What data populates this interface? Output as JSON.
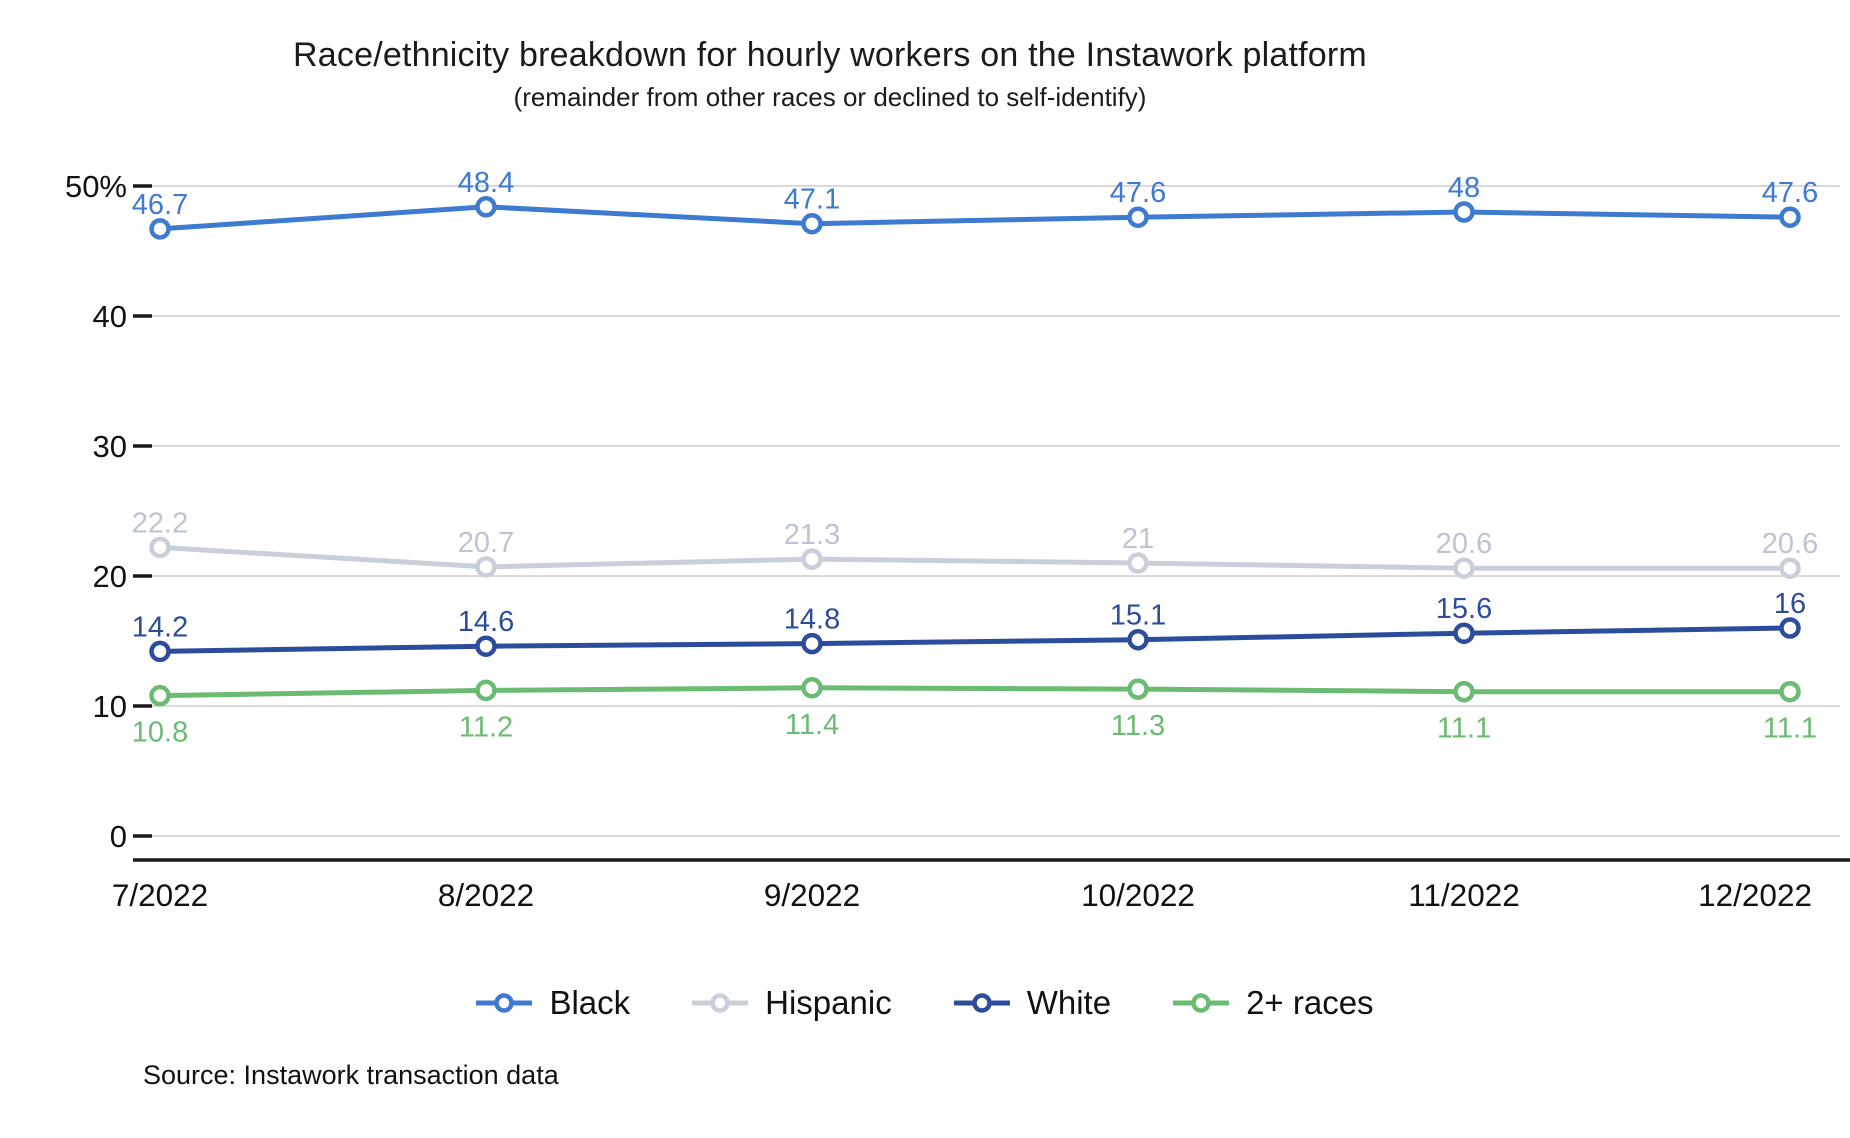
{
  "header": {
    "title": "Race/ethnicity breakdown for hourly workers on the Instawork platform",
    "subtitle": "(remainder from other races or declined to self-identify)"
  },
  "source": {
    "text": "Source: Instawork transaction data"
  },
  "chart_data": {
    "type": "line",
    "title": "Race/ethnicity breakdown for hourly workers on the Instawork platform",
    "subtitle": "(remainder from other races or declined to self-identify)",
    "x": [
      "7/2022",
      "8/2022",
      "9/2022",
      "10/2022",
      "11/2022",
      "12/2022"
    ],
    "series": [
      {
        "name": "Black",
        "color": "#3d7ad0",
        "label_color": "#3d7ad0",
        "label_position": "above",
        "values": [
          46.7,
          48.4,
          47.1,
          47.6,
          48,
          47.6
        ]
      },
      {
        "name": "Hispanic",
        "color": "#c8cfdb",
        "label_color": "#bcc4d3",
        "label_position": "above",
        "values": [
          22.2,
          20.7,
          21.3,
          21,
          20.6,
          20.6
        ]
      },
      {
        "name": "White",
        "color": "#2c4c9c",
        "label_color": "#2c4c9c",
        "label_position": "above",
        "values": [
          14.2,
          14.6,
          14.8,
          15.1,
          15.6,
          16
        ]
      },
      {
        "name": "2+ races",
        "color": "#6bbb72",
        "label_color": "#6bbb72",
        "label_position": "below",
        "values": [
          10.8,
          11.2,
          11.4,
          11.3,
          11.1,
          11.1
        ]
      }
    ],
    "yticks": [
      {
        "value": 0,
        "label": "0"
      },
      {
        "value": 10,
        "label": "10"
      },
      {
        "value": 20,
        "label": "20"
      },
      {
        "value": 30,
        "label": "30"
      },
      {
        "value": 40,
        "label": "40"
      },
      {
        "value": 50,
        "label": "50%"
      }
    ],
    "ylim": [
      0,
      52
    ],
    "grid": true,
    "grid_color": "#d5d5d5",
    "axis_color": "#1a1a1a",
    "legend_position": "bottom",
    "marker": "open-circle"
  }
}
